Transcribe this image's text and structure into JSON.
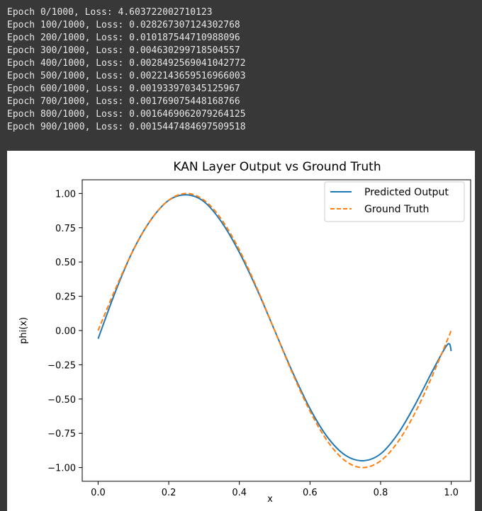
{
  "console": {
    "lines": [
      "Epoch 0/1000, Loss: 4.603722002710123",
      "Epoch 100/1000, Loss: 0.028267307124302768",
      "Epoch 200/1000, Loss: 0.010187544710988096",
      "Epoch 300/1000, Loss: 0.004630299718504557",
      "Epoch 400/1000, Loss: 0.0028492569041042772",
      "Epoch 500/1000, Loss: 0.0022143659516966003",
      "Epoch 600/1000, Loss: 0.001933970345125967",
      "Epoch 700/1000, Loss: 0.001769075448168766",
      "Epoch 800/1000, Loss: 0.0016469062079264125",
      "Epoch 900/1000, Loss: 0.0015447484697509518"
    ]
  },
  "chart_data": {
    "type": "line",
    "title": "KAN Layer Output vs Ground Truth",
    "xlabel": "x",
    "ylabel": "phi(x)",
    "xlim": [
      -0.045,
      1.055
    ],
    "ylim": [
      -1.1,
      1.1
    ],
    "x_ticks": [
      0.0,
      0.2,
      0.4,
      0.6,
      0.8,
      1.0
    ],
    "x_tick_labels": [
      "0.0",
      "0.2",
      "0.4",
      "0.6",
      "0.8",
      "1.0"
    ],
    "y_ticks": [
      1.0,
      0.75,
      0.5,
      0.25,
      0.0,
      -0.25,
      -0.5,
      -0.75,
      -1.0
    ],
    "y_tick_labels": [
      "1.00",
      "0.75",
      "0.50",
      "0.25",
      "0.00",
      "−0.25",
      "−0.50",
      "−0.75",
      "−1.00"
    ],
    "grid": false,
    "legend_position": "top-right",
    "series": [
      {
        "name": "Predicted Output",
        "color": "#1f77b4",
        "dash": "solid",
        "x": [
          0.0,
          0.05,
          0.1,
          0.15,
          0.2,
          0.25,
          0.3,
          0.35,
          0.4,
          0.45,
          0.5,
          0.55,
          0.6,
          0.65,
          0.7,
          0.75,
          0.8,
          0.85,
          0.9,
          0.95,
          0.99,
          1.0
        ],
        "y": [
          -0.06,
          0.29,
          0.59,
          0.81,
          0.95,
          0.99,
          0.94,
          0.79,
          0.57,
          0.3,
          0.0,
          -0.3,
          -0.57,
          -0.78,
          -0.91,
          -0.95,
          -0.9,
          -0.75,
          -0.53,
          -0.28,
          -0.1,
          -0.15
        ]
      },
      {
        "name": "Ground Truth",
        "color": "#ff7f0e",
        "dash": "dashed",
        "x": [
          0.0,
          0.05,
          0.1,
          0.15,
          0.2,
          0.25,
          0.3,
          0.35,
          0.4,
          0.45,
          0.5,
          0.55,
          0.6,
          0.65,
          0.7,
          0.75,
          0.8,
          0.85,
          0.9,
          0.95,
          1.0
        ],
        "y": [
          0.0,
          0.309,
          0.588,
          0.809,
          0.951,
          1.0,
          0.951,
          0.809,
          0.588,
          0.309,
          0.0,
          -0.309,
          -0.588,
          -0.809,
          -0.951,
          -1.0,
          -0.951,
          -0.809,
          -0.588,
          -0.309,
          0.0
        ]
      }
    ]
  }
}
